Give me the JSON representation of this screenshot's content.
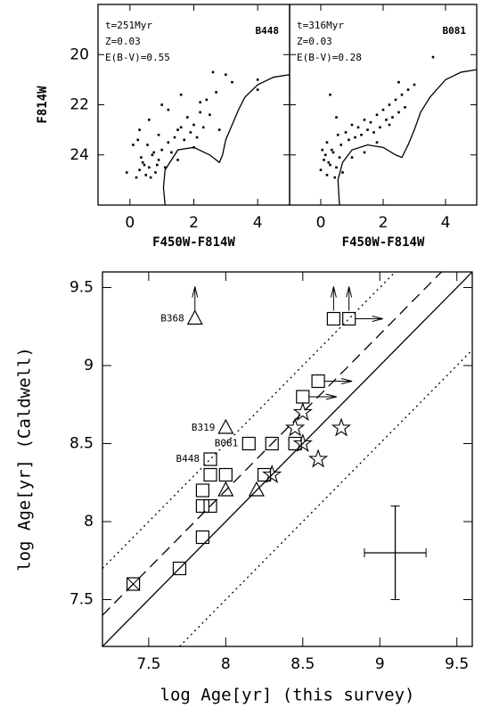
{
  "chart_data": [
    {
      "type": "scatter",
      "xlabel": "F450W-F814W",
      "ylabel": "F814W",
      "xlim": [
        -1,
        5
      ],
      "ylim": [
        18,
        26
      ],
      "y_inverted": true,
      "xticks": [
        0,
        2,
        4
      ],
      "yticks": [
        20,
        22,
        24
      ],
      "show_ytick_labels": true,
      "annotations": [
        "t=251Myr",
        "Z=0.03",
        "E(B-V)=0.55"
      ],
      "label": "B448",
      "series": [
        {
          "marker": "dot",
          "color": "#000000",
          "x": [
            0.2,
            0.3,
            0.4,
            0.5,
            0.6,
            0.7,
            0.8,
            0.9,
            1.0,
            0.35,
            0.55,
            0.75,
            0.25,
            0.45,
            0.65,
            0.85,
            1.1,
            1.2,
            1.3,
            1.4,
            0.9,
            1.5,
            1.6,
            1.7,
            1.8,
            1.9,
            2.0,
            2.1,
            2.2,
            2.3,
            2.4,
            2.5,
            2.6,
            2.7,
            2.8,
            0.6,
            0.3,
            1.0,
            1.2,
            1.6,
            2.2,
            3.0,
            3.2,
            4.0,
            4.0,
            -0.1,
            0.1,
            1.5,
            2.0
          ],
          "values": [
            24.9,
            24.6,
            24.3,
            24.8,
            24.5,
            24.0,
            24.7,
            24.2,
            23.8,
            24.1,
            23.6,
            23.9,
            23.4,
            24.4,
            24.9,
            24.4,
            24.5,
            23.5,
            23.9,
            23.3,
            23.2,
            23.0,
            22.9,
            23.4,
            22.5,
            23.1,
            22.8,
            23.3,
            22.3,
            22.9,
            21.8,
            22.4,
            20.7,
            21.5,
            23.0,
            22.6,
            23.0,
            22.0,
            22.2,
            21.6,
            21.9,
            20.8,
            21.1,
            21.0,
            21.4,
            24.7,
            23.6,
            24.2,
            23.7
          ]
        },
        {
          "marker": "line",
          "color": "#000000",
          "x": [
            1.1,
            1.05,
            1.1,
            1.5,
            2.0,
            2.5,
            2.8,
            2.9,
            3.0,
            3.2,
            3.4,
            3.6,
            4.0,
            4.5,
            5.0
          ],
          "values": [
            26,
            25.3,
            24.6,
            23.8,
            23.7,
            24.0,
            24.3,
            24.0,
            23.4,
            22.8,
            22.2,
            21.7,
            21.2,
            20.9,
            20.8
          ]
        }
      ]
    },
    {
      "type": "scatter",
      "xlabel": "F450W-F814W",
      "xlim": [
        -1,
        5
      ],
      "ylim": [
        18,
        26
      ],
      "y_inverted": true,
      "xticks": [
        0,
        2,
        4
      ],
      "yticks": [
        20,
        22,
        24
      ],
      "show_ytick_labels": false,
      "annotations": [
        "t=316Myr",
        "Z=0.03",
        "E(B-V)=0.28"
      ],
      "label": "B081",
      "series": [
        {
          "marker": "dot",
          "color": "#000000",
          "x": [
            0.0,
            0.1,
            0.2,
            0.3,
            0.4,
            0.5,
            0.6,
            0.7,
            0.2,
            0.35,
            0.55,
            0.45,
            0.15,
            0.25,
            0.65,
            0.8,
            0.9,
            1.0,
            1.1,
            1.2,
            1.3,
            1.4,
            1.5,
            1.6,
            1.7,
            1.8,
            1.9,
            2.0,
            2.1,
            2.2,
            2.3,
            2.4,
            2.5,
            2.6,
            2.7,
            2.8,
            3.0,
            0.3,
            3.6,
            1.0,
            1.4,
            1.8,
            2.2,
            0.05,
            0.5,
            2.5
          ],
          "values": [
            24.6,
            24.2,
            24.8,
            24.4,
            23.9,
            24.5,
            24.1,
            24.7,
            23.5,
            23.8,
            23.2,
            24.9,
            24.0,
            24.3,
            23.6,
            23.1,
            23.4,
            22.8,
            23.3,
            22.9,
            23.2,
            22.6,
            23.0,
            22.7,
            23.1,
            22.4,
            22.9,
            22.2,
            22.6,
            22.0,
            22.5,
            21.8,
            22.3,
            21.6,
            22.1,
            21.4,
            21.2,
            21.6,
            20.1,
            24.1,
            23.9,
            23.5,
            22.8,
            23.8,
            22.5,
            21.1
          ]
        },
        {
          "marker": "line",
          "color": "#000000",
          "x": [
            0.6,
            0.55,
            0.7,
            1.0,
            1.5,
            2.0,
            2.4,
            2.6,
            2.8,
            3.0,
            3.2,
            3.5,
            4.0,
            4.5,
            5.0
          ],
          "values": [
            26,
            25,
            24.3,
            23.8,
            23.6,
            23.7,
            24.0,
            24.1,
            23.6,
            23.0,
            22.3,
            21.7,
            21.0,
            20.7,
            20.6
          ]
        }
      ]
    },
    {
      "type": "scatter",
      "xlabel": "log Age[yr] (this survey)",
      "ylabel": "log Age[yr] (Caldwell)",
      "xlim": [
        7.2,
        9.6
      ],
      "ylim": [
        7.2,
        9.6
      ],
      "xticks": [
        7.5,
        8,
        8.5,
        9,
        9.5
      ],
      "yticks": [
        7.5,
        8,
        8.5,
        9,
        9.5
      ],
      "show_ytick_labels": true,
      "errorbar": {
        "x": 9.1,
        "y": 7.8,
        "xerr": 0.2,
        "yerr": 0.3
      },
      "series": [
        {
          "marker": "line",
          "dash": "solid",
          "color": "#000000",
          "x": [
            7.2,
            9.6
          ],
          "values": [
            7.2,
            9.6
          ]
        },
        {
          "marker": "line",
          "dash": "dashed",
          "color": "#000000",
          "x": [
            7.2,
            9.4
          ],
          "values": [
            7.4,
            9.6
          ]
        },
        {
          "marker": "line",
          "dash": "dotted",
          "color": "#000000",
          "x": [
            7.2,
            9.1
          ],
          "values": [
            7.7,
            9.6
          ]
        },
        {
          "marker": "line",
          "dash": "dotted",
          "color": "#000000",
          "x": [
            7.7,
            9.6
          ],
          "values": [
            7.2,
            9.1
          ]
        },
        {
          "marker": "crossed-square",
          "color": "#000000",
          "x": [
            7.4
          ],
          "values": [
            7.6
          ]
        },
        {
          "marker": "square",
          "color": "#000000",
          "x": [
            7.7,
            7.85,
            7.85,
            7.9,
            7.85,
            7.9,
            7.9,
            8.0,
            8.15,
            8.3,
            8.25,
            8.45
          ],
          "values": [
            7.7,
            7.9,
            8.1,
            8.1,
            8.2,
            8.3,
            8.4,
            8.3,
            8.5,
            8.5,
            8.3,
            8.5
          ],
          "point_labels": [
            null,
            null,
            null,
            null,
            null,
            null,
            "B448",
            null,
            "B081",
            null,
            null,
            null
          ]
        },
        {
          "marker": "square",
          "arrow": "right",
          "color": "#000000",
          "x": [
            8.5,
            8.6
          ],
          "values": [
            8.8,
            8.9
          ]
        },
        {
          "marker": "square",
          "arrow": "up",
          "color": "#000000",
          "x": [
            8.7
          ],
          "values": [
            9.3
          ]
        },
        {
          "marker": "square",
          "arrow": "up-right",
          "color": "#000000",
          "x": [
            8.8
          ],
          "values": [
            9.3
          ]
        },
        {
          "marker": "triangle",
          "arrow": "up",
          "color": "#000000",
          "x": [
            7.8
          ],
          "values": [
            9.3
          ],
          "point_labels": [
            "B368"
          ]
        },
        {
          "marker": "triangle",
          "color": "#000000",
          "x": [
            8.0,
            8.0,
            8.2
          ],
          "values": [
            8.6,
            8.2,
            8.2
          ],
          "point_labels": [
            "B319",
            null,
            null
          ]
        },
        {
          "marker": "star",
          "color": "#000000",
          "x": [
            8.3,
            8.45,
            8.5,
            8.5,
            8.6,
            8.75
          ],
          "values": [
            8.3,
            8.6,
            8.7,
            8.5,
            8.4,
            8.6
          ]
        }
      ]
    }
  ]
}
